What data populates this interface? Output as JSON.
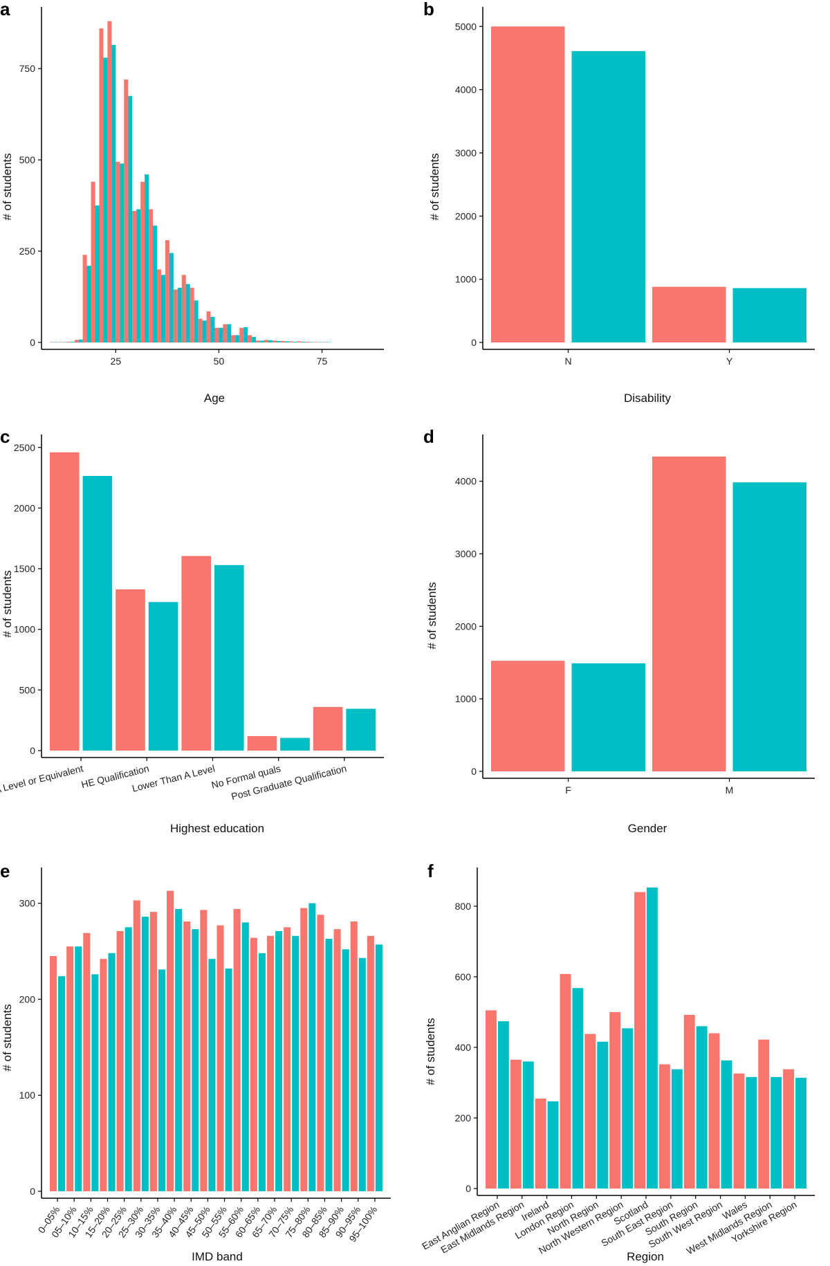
{
  "colors": {
    "series1": "#F8766D",
    "series2": "#00BFC4",
    "axis": "#000000"
  },
  "chart_data": [
    {
      "panel": "a",
      "type": "bar",
      "xlabel": "Age",
      "ylabel": "# of students",
      "xscale": "linear",
      "xlim": [
        7,
        90
      ],
      "ylim": [
        0,
        900
      ],
      "xticks": [
        25,
        50,
        75
      ],
      "yticks": [
        0,
        250,
        500,
        750
      ],
      "x": [
        10,
        12,
        14,
        16,
        18,
        20,
        22,
        24,
        26,
        28,
        30,
        32,
        34,
        36,
        38,
        40,
        42,
        44,
        46,
        48,
        50,
        52,
        54,
        56,
        58,
        60,
        62,
        64,
        66,
        68,
        70,
        72,
        74,
        76,
        78,
        80,
        82,
        84,
        86
      ],
      "series": [
        {
          "name": "series1",
          "values": [
            1,
            1,
            2,
            7,
            240,
            440,
            860,
            880,
            495,
            720,
            360,
            440,
            365,
            200,
            280,
            145,
            185,
            150,
            65,
            85,
            40,
            50,
            20,
            40,
            20,
            5,
            7,
            5,
            4,
            3,
            3,
            2,
            1,
            1,
            0,
            0,
            0,
            0,
            0
          ]
        },
        {
          "name": "series2",
          "values": [
            1,
            1,
            2,
            8,
            210,
            375,
            780,
            815,
            490,
            675,
            365,
            460,
            320,
            185,
            245,
            150,
            160,
            115,
            60,
            70,
            40,
            50,
            20,
            42,
            15,
            5,
            6,
            4,
            3,
            2,
            2,
            1,
            1,
            1,
            0,
            0,
            0,
            0,
            0
          ]
        }
      ]
    },
    {
      "panel": "b",
      "type": "bar",
      "xlabel": "Disability",
      "ylabel": "# of students",
      "ylim": [
        0,
        5200
      ],
      "yticks": [
        0,
        1000,
        2000,
        3000,
        4000,
        5000
      ],
      "categories": [
        "N",
        "Y"
      ],
      "series": [
        {
          "name": "series1",
          "values": [
            5000,
            880
          ]
        },
        {
          "name": "series2",
          "values": [
            4610,
            860
          ]
        }
      ]
    },
    {
      "panel": "c",
      "type": "bar",
      "xlabel": "Highest education",
      "ylabel": "# of students",
      "ylim": [
        0,
        2550
      ],
      "yticks": [
        0,
        500,
        1000,
        1500,
        2000,
        2500
      ],
      "categories": [
        "A Level or Equivalent",
        "HE Qualification",
        "Lower Than A Level",
        "No Formal quals",
        "Post Graduate Qualification"
      ],
      "series": [
        {
          "name": "series1",
          "values": [
            2460,
            1330,
            1605,
            120,
            360
          ]
        },
        {
          "name": "series2",
          "values": [
            2265,
            1225,
            1530,
            105,
            345
          ]
        }
      ]
    },
    {
      "panel": "d",
      "type": "bar",
      "xlabel": "Gender",
      "ylabel": "# of students",
      "ylim": [
        0,
        4550
      ],
      "yticks": [
        0,
        1000,
        2000,
        3000,
        4000
      ],
      "categories": [
        "F",
        "M"
      ],
      "series": [
        {
          "name": "series1",
          "values": [
            1525,
            4340
          ]
        },
        {
          "name": "series2",
          "values": [
            1490,
            3985
          ]
        }
      ]
    },
    {
      "panel": "e",
      "type": "bar",
      "xlabel": "IMD band",
      "ylabel": "# of students",
      "ylim": [
        0,
        330
      ],
      "yticks": [
        0,
        100,
        200,
        300
      ],
      "categories": [
        "0–05%",
        "05–10%",
        "10–15%",
        "15–20%",
        "20–25%",
        "25–30%",
        "30–35%",
        "35–40%",
        "40–45%",
        "45–50%",
        "50–55%",
        "55–60%",
        "60–65%",
        "65–70%",
        "70–75%",
        "75–80%",
        "80–85%",
        "85–90%",
        "90–95%",
        "95–100%"
      ],
      "series": [
        {
          "name": "series1",
          "values": [
            245,
            255,
            269,
            242,
            271,
            303,
            291,
            313,
            281,
            293,
            277,
            294,
            264,
            266,
            275,
            295,
            288,
            273,
            281,
            266
          ]
        },
        {
          "name": "series2",
          "values": [
            224,
            255,
            226,
            248,
            275,
            286,
            231,
            294,
            273,
            242,
            232,
            280,
            248,
            271,
            266,
            300,
            263,
            252,
            243,
            257
          ]
        }
      ]
    },
    {
      "panel": "f",
      "type": "bar",
      "xlabel": "Region",
      "ylabel": "# of students",
      "ylim": [
        0,
        890
      ],
      "yticks": [
        0,
        200,
        400,
        600,
        800
      ],
      "categories": [
        "East Anglian Region",
        "East Midlands Region",
        "Ireland",
        "London Region",
        "North Region",
        "North Western Region",
        "Scotland",
        "South East Region",
        "South Region",
        "South West Region",
        "Wales",
        "West Midlands Region",
        "Yorkshire Region"
      ],
      "series": [
        {
          "name": "series1",
          "values": [
            505,
            365,
            255,
            608,
            438,
            500,
            840,
            352,
            492,
            440,
            326,
            422,
            338
          ]
        },
        {
          "name": "series2",
          "values": [
            474,
            360,
            247,
            568,
            416,
            454,
            853,
            338,
            460,
            363,
            316,
            316,
            314
          ]
        }
      ]
    }
  ]
}
